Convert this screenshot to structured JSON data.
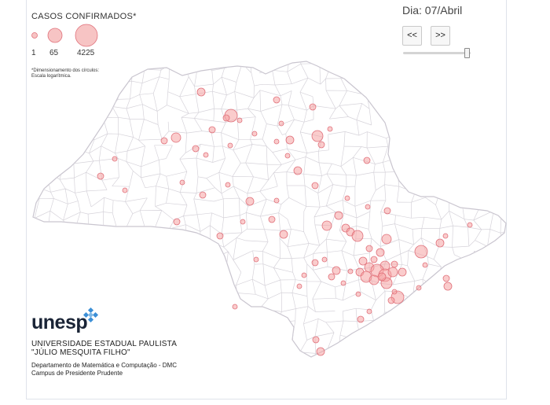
{
  "legend": {
    "title": "CASOS CONFIRMADOS*",
    "values": [
      "1",
      "65",
      "4225"
    ],
    "note_line1": "*Dimensionamento dos círculos:",
    "note_line2": "Escala logarítmica."
  },
  "controls": {
    "date_label": "Dia: 07/Abril",
    "prev_label": "<<",
    "next_label": ">>",
    "slider_position": 1.0
  },
  "colors": {
    "bubble_fill": "#f5a3a3",
    "bubble_stroke": "#e0707a",
    "border_line": "#d6d3da",
    "logo_text": "#1a2436",
    "logo_mark": "#3c8fd6"
  },
  "branding": {
    "logo_text": "unesp",
    "institution_line1": "UNIVERSIDADE ESTADUAL PAULISTA",
    "institution_line2": "\"JÚLIO MESQUITA FILHO\"",
    "department_line1": "Departamento de Matemática e Computação - DMC",
    "department_line2": "Campus de Presidente Prudente"
  }
}
